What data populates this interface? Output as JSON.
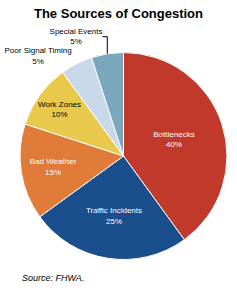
{
  "chart_data": {
    "type": "pie",
    "title": "The Sources of Congestion",
    "source": "Source: FHWA.",
    "categories": [
      "Bottlenecks",
      "Traffic Incidents",
      "Bad Weather",
      "Work Zones",
      "Poor Signal Timing",
      "Special Events"
    ],
    "values": [
      40,
      25,
      15,
      10,
      5,
      5
    ],
    "value_labels": [
      "40%",
      "25%",
      "15%",
      "10%",
      "5%",
      "5%"
    ],
    "colors": [
      "#C0392B",
      "#1A4E8C",
      "#E07B3A",
      "#E8C94B",
      "#C8D8E8",
      "#7BA7BC"
    ],
    "data_labels": true
  }
}
